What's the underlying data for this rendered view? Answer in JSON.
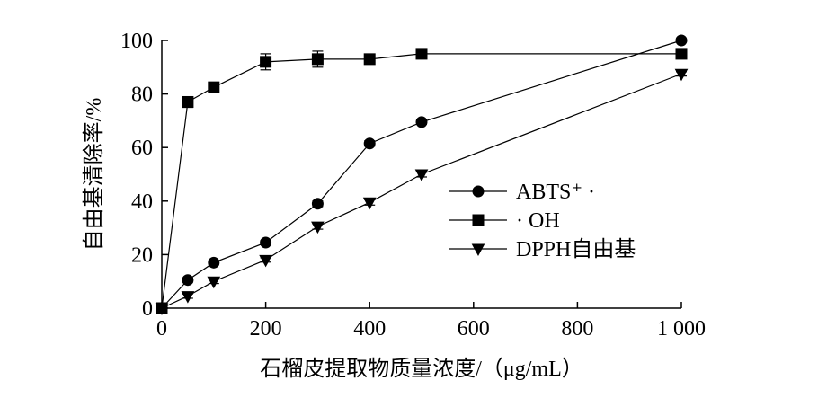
{
  "chart_data": {
    "type": "line",
    "xlabel": "石榴皮提取物质量浓度/（μg/mL）",
    "ylabel": "自由基清除率/%",
    "x_ticks": [
      "0",
      "200",
      "400",
      "600",
      "800",
      "1 000"
    ],
    "y_ticks": [
      "0",
      "20",
      "40",
      "60",
      "80",
      "100"
    ],
    "xlim": [
      0,
      1000
    ],
    "ylim": [
      0,
      100
    ],
    "grid": false,
    "legend_position": "right",
    "x": [
      0,
      50,
      100,
      200,
      300,
      400,
      500,
      1000
    ],
    "series": [
      {
        "name": "ABTS⁺ ·",
        "marker": "circle",
        "values": [
          0,
          10.5,
          17,
          24.5,
          39,
          61.5,
          69.5,
          100
        ],
        "errors": [
          0,
          0.8,
          0.8,
          0.8,
          1,
          1,
          0.8,
          0.5
        ]
      },
      {
        "name": "· OH",
        "marker": "square",
        "values": [
          0,
          77,
          82.5,
          92,
          93,
          93,
          95,
          95
        ],
        "errors": [
          0,
          2,
          1,
          3,
          3,
          1,
          1,
          0.5
        ]
      },
      {
        "name": "DPPH自由基",
        "marker": "triangle-down",
        "values": [
          0,
          4.5,
          10,
          18,
          30.5,
          39.5,
          50,
          87.5
        ],
        "errors": [
          0,
          0.8,
          0.8,
          0.8,
          1,
          1,
          1,
          0.8
        ]
      }
    ]
  }
}
